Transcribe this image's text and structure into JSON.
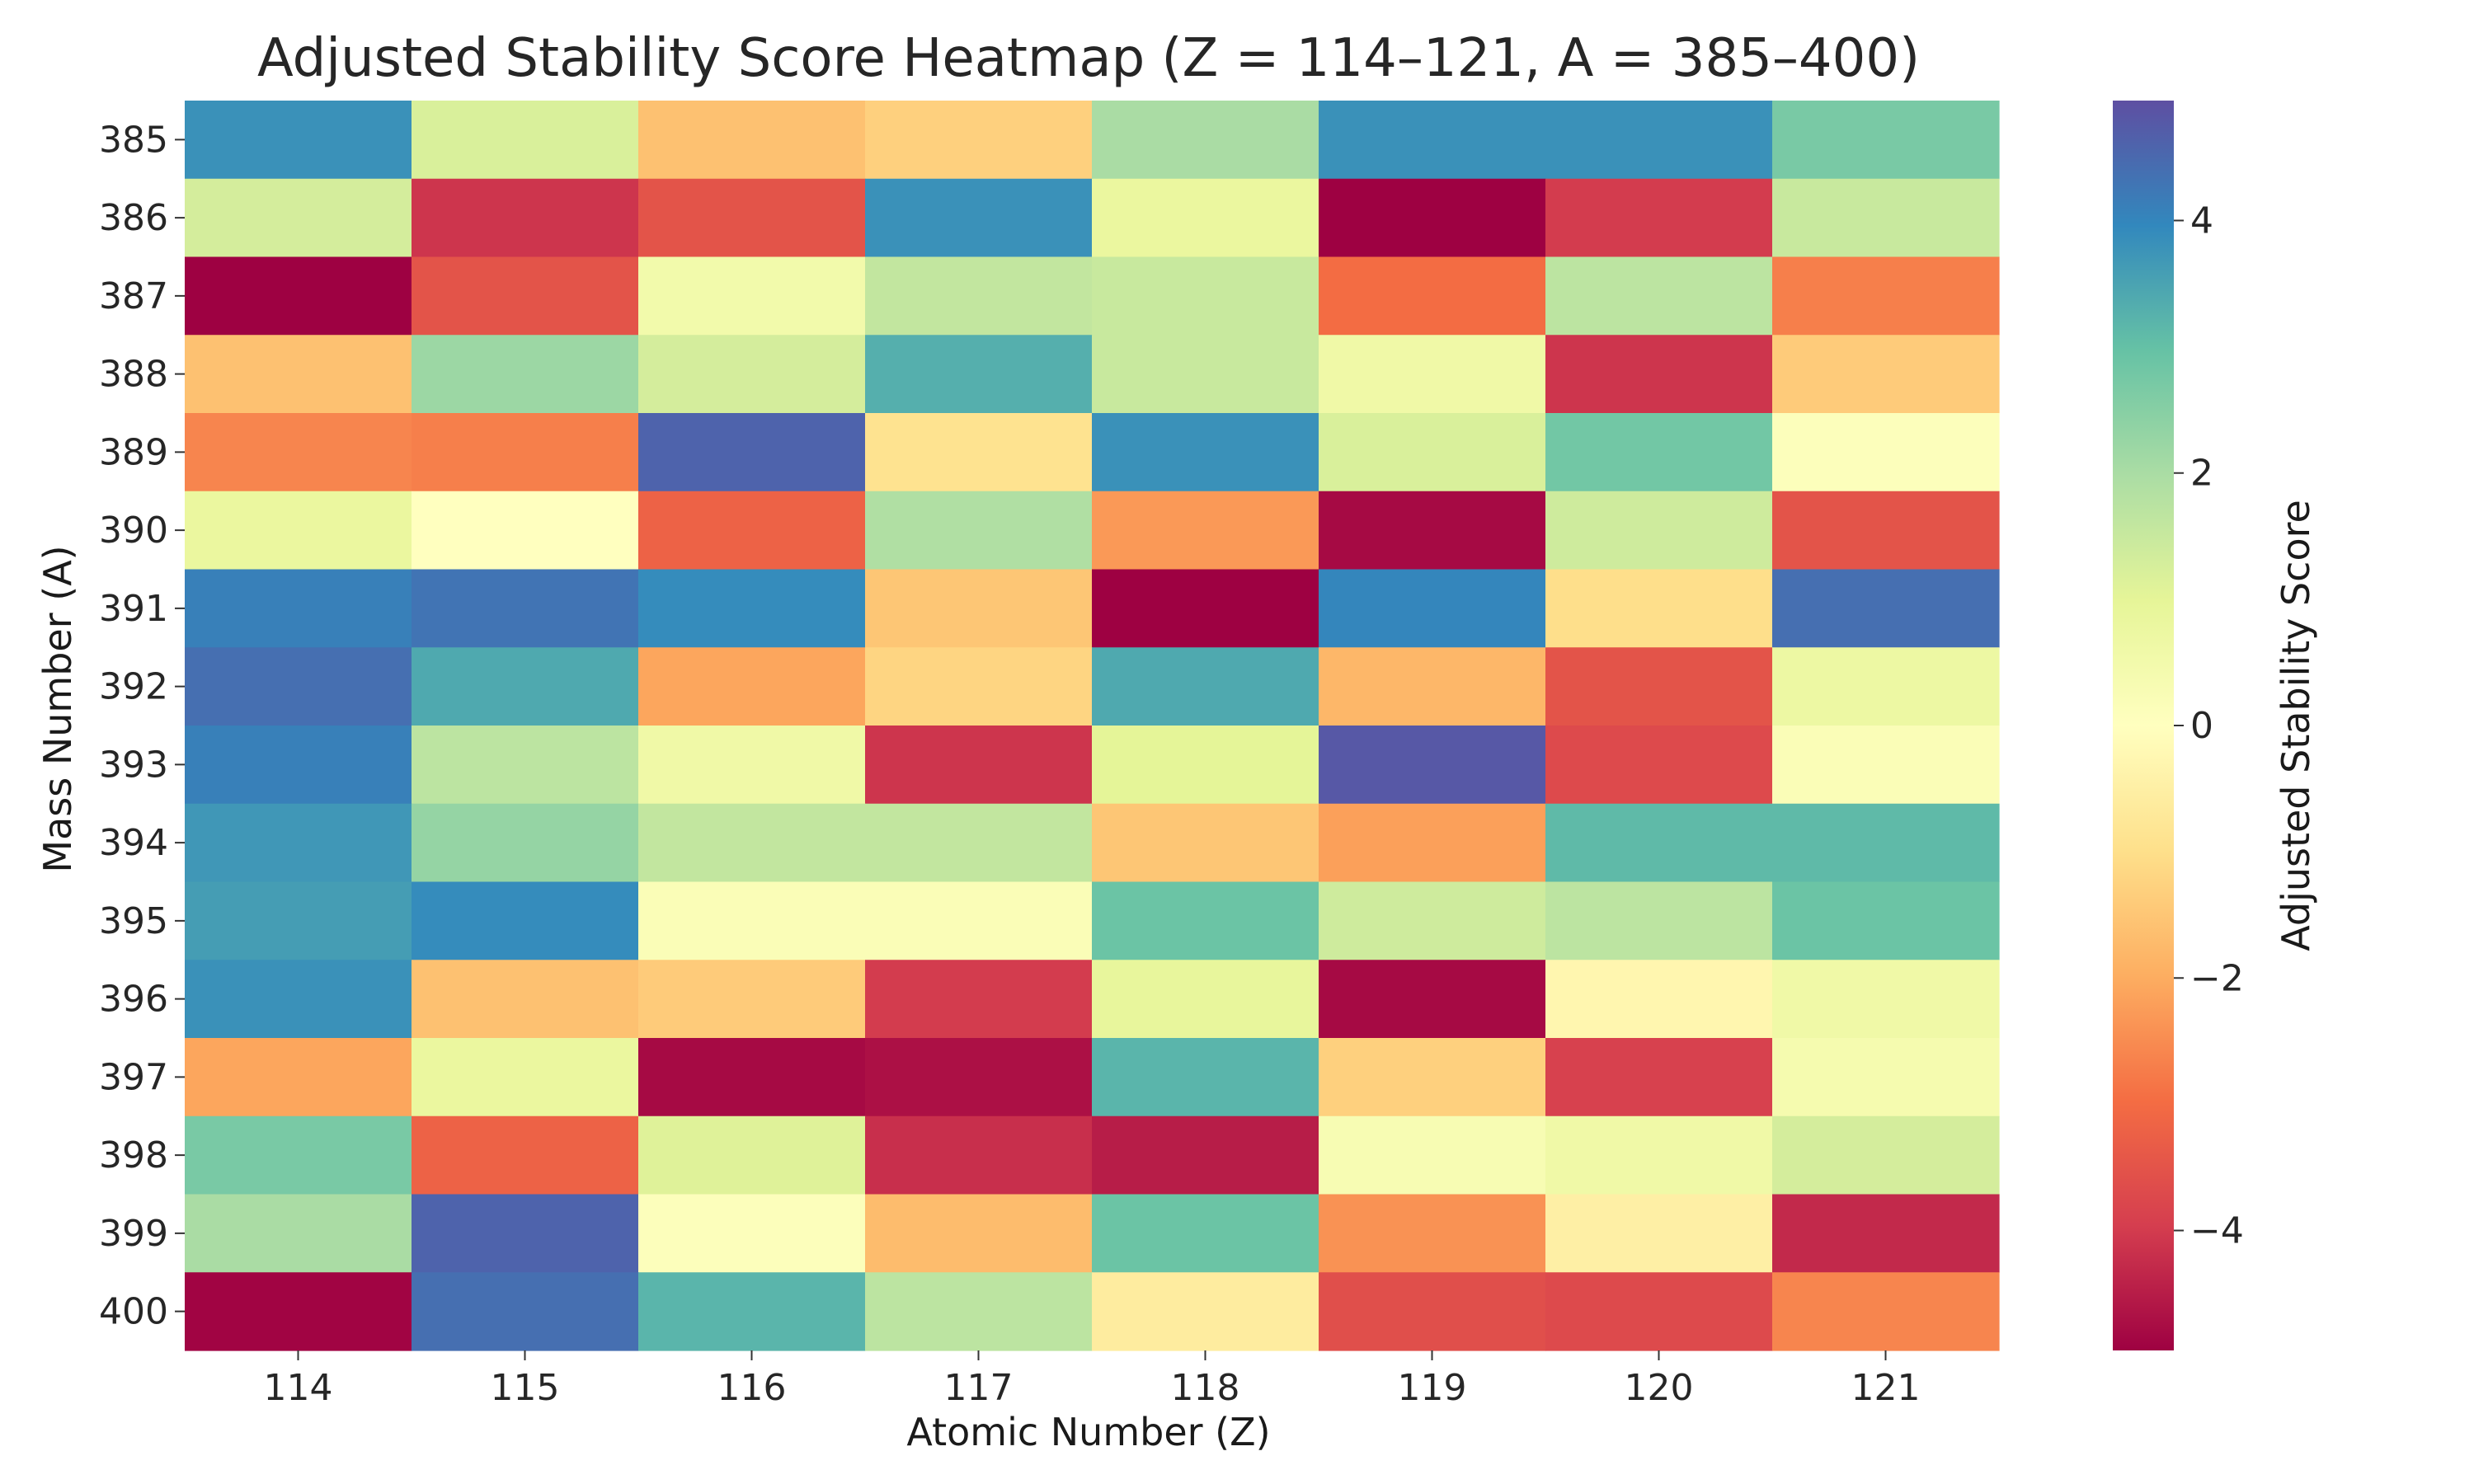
{
  "chart_data": {
    "type": "heatmap",
    "title": "Adjusted Stability Score Heatmap (Z = 114–121, A = 385–400)",
    "xlabel": "Atomic Number (Z)",
    "ylabel": "Mass Number (A)",
    "x": [
      "114",
      "115",
      "116",
      "117",
      "118",
      "119",
      "120",
      "121"
    ],
    "y": [
      "385",
      "386",
      "387",
      "388",
      "389",
      "390",
      "391",
      "392",
      "393",
      "394",
      "395",
      "396",
      "397",
      "398",
      "399",
      "400"
    ],
    "values": [
      [
        3.8,
        1.2,
        -1.6,
        -1.3,
        2.0,
        3.8,
        3.8,
        2.7
      ],
      [
        1.3,
        -4.1,
        -3.5,
        3.8,
        0.8,
        -5.0,
        -4.0,
        1.5
      ],
      [
        -5.0,
        -3.5,
        0.5,
        1.6,
        1.5,
        -3.0,
        1.7,
        -2.7
      ],
      [
        -1.6,
        2.2,
        1.3,
        3.3,
        1.5,
        0.6,
        -4.1,
        -1.4
      ],
      [
        -2.6,
        -2.7,
        4.6,
        -0.9,
        3.8,
        1.2,
        2.8,
        0.1
      ],
      [
        0.8,
        0.0,
        -3.2,
        1.9,
        -2.3,
        -4.8,
        1.4,
        -3.5
      ],
      [
        4.1,
        4.3,
        3.9,
        -1.5,
        -5.0,
        4.0,
        -1.0,
        4.4
      ],
      [
        4.4,
        3.4,
        -2.1,
        -1.2,
        3.4,
        -1.8,
        -3.5,
        0.7
      ],
      [
        4.1,
        1.7,
        0.6,
        -4.1,
        1.0,
        4.8,
        -3.7,
        0.2
      ],
      [
        3.7,
        2.3,
        1.6,
        1.6,
        -1.5,
        -2.2,
        3.1,
        3.1
      ],
      [
        3.6,
        3.9,
        0.2,
        0.2,
        2.9,
        1.4,
        1.7,
        2.9
      ],
      [
        3.8,
        -1.6,
        -1.4,
        -4.0,
        0.9,
        -4.8,
        -0.3,
        0.6
      ],
      [
        -2.1,
        0.8,
        -4.8,
        -4.7,
        3.2,
        -1.3,
        -3.9,
        0.4
      ],
      [
        2.7,
        -3.2,
        1.1,
        -4.2,
        -4.5,
        0.3,
        0.6,
        1.3
      ],
      [
        2.0,
        4.6,
        0.1,
        -1.7,
        2.9,
        -2.4,
        -0.5,
        -4.3
      ],
      [
        -4.9,
        4.4,
        3.2,
        1.7,
        -0.6,
        -3.6,
        -3.7,
        -2.6
      ]
    ],
    "colorbar": {
      "label": "Adjusted Stability Score",
      "range": [
        -4.95,
        4.95
      ],
      "ticks": [
        4,
        2,
        0,
        -2,
        -4
      ],
      "tick_labels": [
        "4",
        "2",
        "0",
        "−2",
        "−4"
      ],
      "colormap_stops": [
        "#9e0142",
        "#d53e4f",
        "#f46d43",
        "#fdae61",
        "#fee08b",
        "#ffffbf",
        "#e6f598",
        "#abdda4",
        "#66c2a5",
        "#3288bd",
        "#5e4fa2"
      ]
    },
    "grid": false,
    "legend": "colorbar-right"
  }
}
